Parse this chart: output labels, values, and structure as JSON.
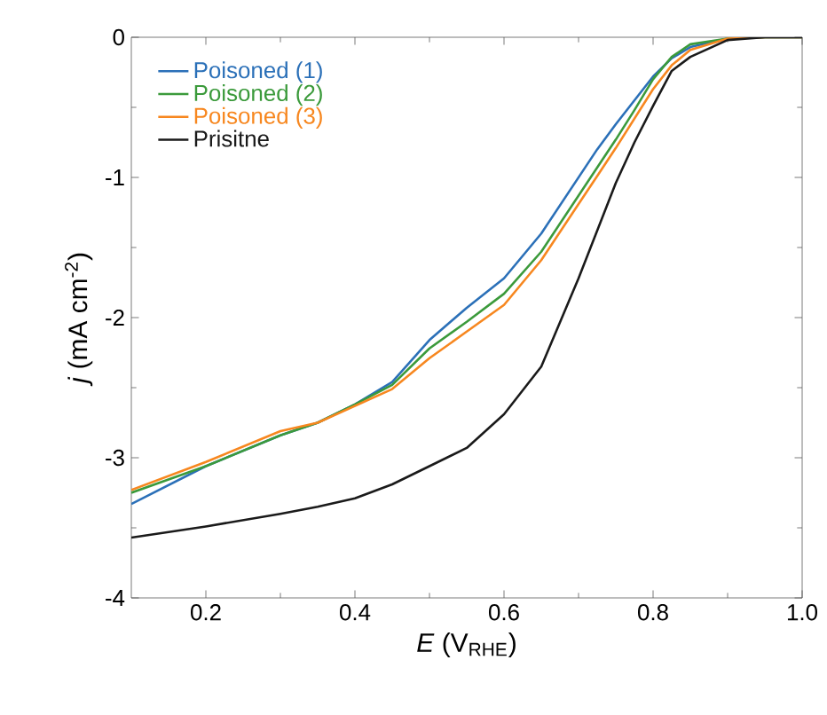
{
  "chart_data": {
    "type": "line",
    "xlabel": "*E* (V$_{RHE}$)",
    "ylabel": "*j* (mA cm$^{-2}$)",
    "xlim": [
      0.1,
      1.0
    ],
    "ylim": [
      -4,
      0
    ],
    "xticks": [
      {
        "value": 0.2,
        "label": "0.2"
      },
      {
        "value": 0.4,
        "label": "0.4"
      },
      {
        "value": 0.6,
        "label": "0.6"
      },
      {
        "value": 0.8,
        "label": "0.8"
      },
      {
        "value": 1.0,
        "label": "1.0"
      }
    ],
    "yticks": [
      -4,
      -3,
      -2,
      -1,
      0
    ],
    "legend": "top left",
    "grid": false,
    "marker": "none",
    "line_style": "solid",
    "x": [
      0.1,
      0.2,
      0.3,
      0.35,
      0.4,
      0.45,
      0.5,
      0.55,
      0.6,
      0.65,
      0.7,
      0.725,
      0.75,
      0.775,
      0.8,
      0.825,
      0.85,
      0.9,
      0.95,
      1.0
    ],
    "series": [
      {
        "name": "Poisoned (1)",
        "color": "#2b70b8",
        "values": [
          -3.33,
          -3.06,
          -2.84,
          -2.75,
          -2.62,
          -2.46,
          -2.16,
          -1.93,
          -1.72,
          -1.4,
          -1.0,
          -0.8,
          -0.62,
          -0.45,
          -0.28,
          -0.15,
          -0.07,
          -0.01,
          0,
          0
        ]
      },
      {
        "name": "Poisoned (2)",
        "color": "#3b9a3b",
        "values": [
          -3.25,
          -3.06,
          -2.84,
          -2.75,
          -2.62,
          -2.48,
          -2.22,
          -2.03,
          -1.83,
          -1.53,
          -1.13,
          -0.93,
          -0.73,
          -0.52,
          -0.3,
          -0.14,
          -0.05,
          -0.01,
          0,
          0
        ]
      },
      {
        "name": "Poisoned (3)",
        "color": "#f7871f",
        "values": [
          -3.23,
          -3.03,
          -2.81,
          -2.75,
          -2.63,
          -2.51,
          -2.29,
          -2.1,
          -1.91,
          -1.59,
          -1.19,
          -0.99,
          -0.79,
          -0.58,
          -0.37,
          -0.2,
          -0.09,
          -0.01,
          0,
          0
        ]
      },
      {
        "name": "Prisitne",
        "color": "#1a1a1a",
        "values": [
          -3.57,
          -3.49,
          -3.4,
          -3.35,
          -3.29,
          -3.19,
          -3.06,
          -2.93,
          -2.69,
          -2.35,
          -1.72,
          -1.38,
          -1.04,
          -0.75,
          -0.49,
          -0.24,
          -0.14,
          -0.02,
          0,
          0
        ]
      }
    ]
  }
}
